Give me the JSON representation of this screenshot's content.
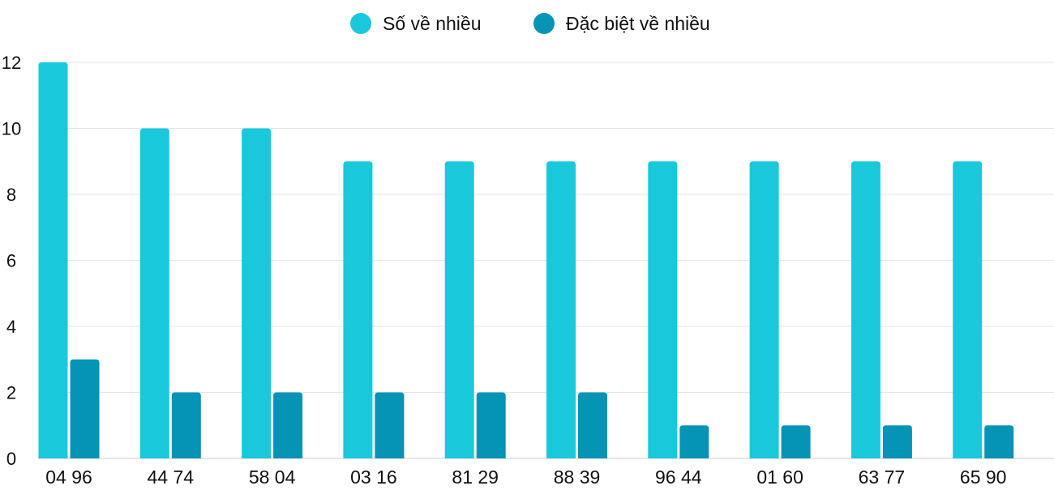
{
  "chart_data": {
    "type": "bar",
    "title": "",
    "xlabel": "",
    "ylabel": "",
    "categories": [
      "04 96",
      "44 74",
      "58 04",
      "03 16",
      "81 29",
      "88 39",
      "96 44",
      "01 60",
      "63 77",
      "65 90"
    ],
    "series": [
      {
        "name": "Số về nhiều",
        "color": "#1ac8db",
        "values": [
          12,
          10,
          10,
          9,
          9,
          9,
          9,
          9,
          9,
          9
        ]
      },
      {
        "name": "Đặc biệt về nhiều",
        "color": "#0593b6",
        "values": [
          3,
          2,
          2,
          2,
          2,
          2,
          1,
          1,
          1,
          1
        ]
      }
    ],
    "ylim": [
      0,
      12
    ],
    "yticks": [
      0,
      2,
      4,
      6,
      8,
      10,
      12
    ],
    "grid": true,
    "legend_position": "top"
  }
}
